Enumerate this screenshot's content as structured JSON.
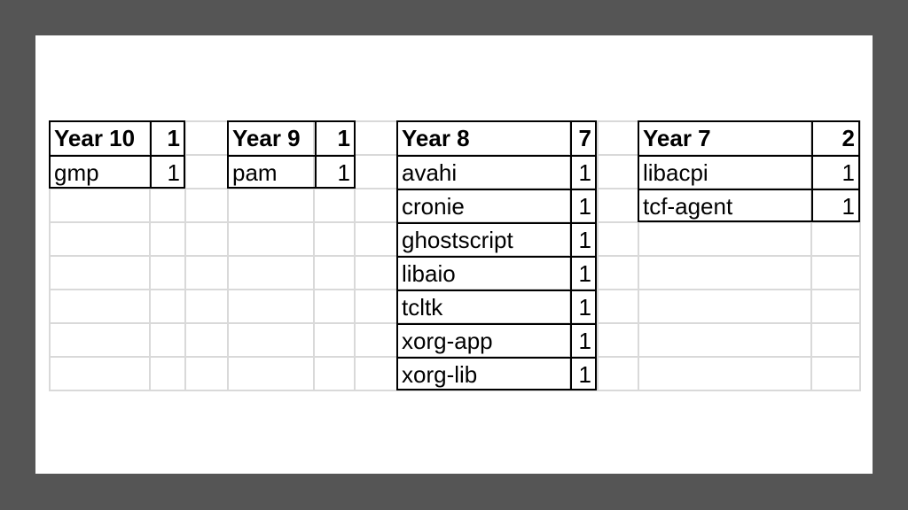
{
  "tables": [
    {
      "header": "Year 10",
      "total": "1",
      "rows": [
        {
          "name": "gmp",
          "count": "1"
        }
      ]
    },
    {
      "header": "Year 9",
      "total": "1",
      "rows": [
        {
          "name": "pam",
          "count": "1"
        }
      ]
    },
    {
      "header": "Year 8",
      "total": "7",
      "rows": [
        {
          "name": "avahi",
          "count": "1"
        },
        {
          "name": "cronie",
          "count": "1"
        },
        {
          "name": "ghostscript",
          "count": "1"
        },
        {
          "name": "libaio",
          "count": "1"
        },
        {
          "name": "tcltk",
          "count": "1"
        },
        {
          "name": "xorg-app",
          "count": "1"
        },
        {
          "name": "xorg-lib",
          "count": "1"
        }
      ]
    },
    {
      "header": "Year 7",
      "total": "2",
      "rows": [
        {
          "name": "libacpi",
          "count": "1"
        },
        {
          "name": "tcf-agent",
          "count": "1"
        }
      ]
    }
  ]
}
